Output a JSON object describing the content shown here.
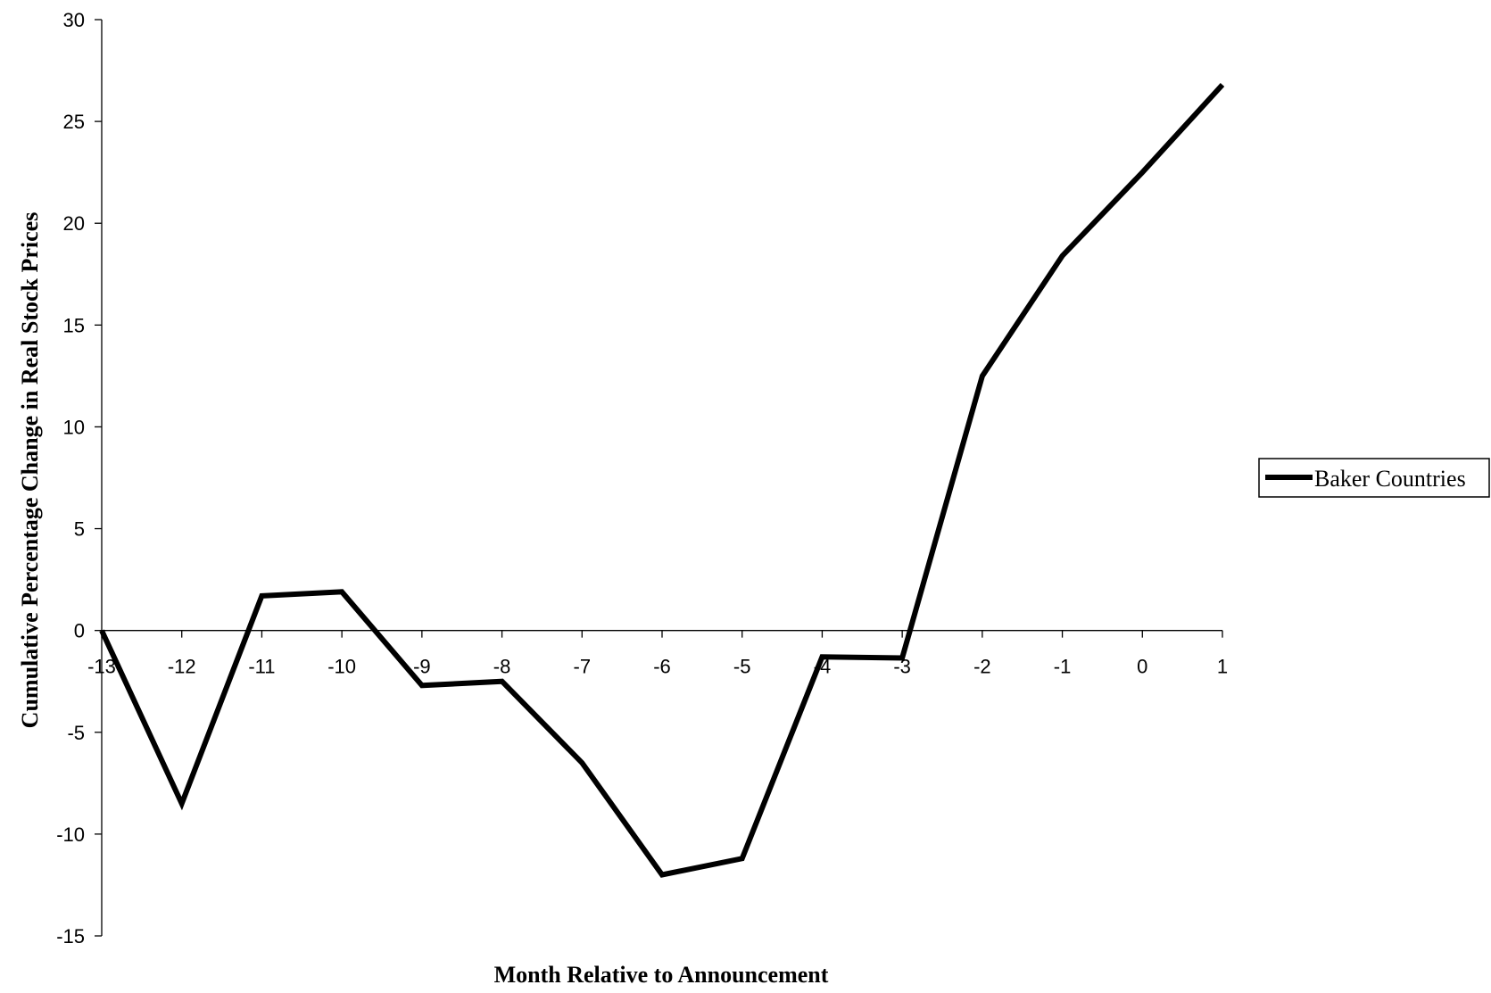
{
  "chart_data": {
    "type": "line",
    "xlabel": "Month Relative to Announcement",
    "ylabel": "Cumulative Percentage Change in Real Stock Prices",
    "x": [
      -13,
      -12,
      -11,
      -10,
      -9,
      -8,
      -7,
      -6,
      -5,
      -4,
      -3,
      -2,
      -1,
      0,
      1
    ],
    "x_tick_labels": [
      "-13",
      "-12",
      "-11",
      "-10",
      "-9",
      "-8",
      "-7",
      "-6",
      "-5",
      "-4",
      "-3",
      "-2",
      "-1",
      "0",
      "1"
    ],
    "ylim": [
      -15,
      30
    ],
    "y_ticks": [
      -15,
      -10,
      -5,
      0,
      5,
      10,
      15,
      20,
      25,
      30
    ],
    "series": [
      {
        "name": "Baker Countries",
        "color": "#000000",
        "values": [
          0,
          -8.5,
          1.7,
          1.9,
          -2.7,
          -2.5,
          -6.5,
          -12.0,
          -11.2,
          -1.3,
          -1.35,
          12.5,
          18.4,
          22.5,
          26.8
        ]
      }
    ],
    "legend": {
      "position": "right"
    },
    "grid": false
  }
}
